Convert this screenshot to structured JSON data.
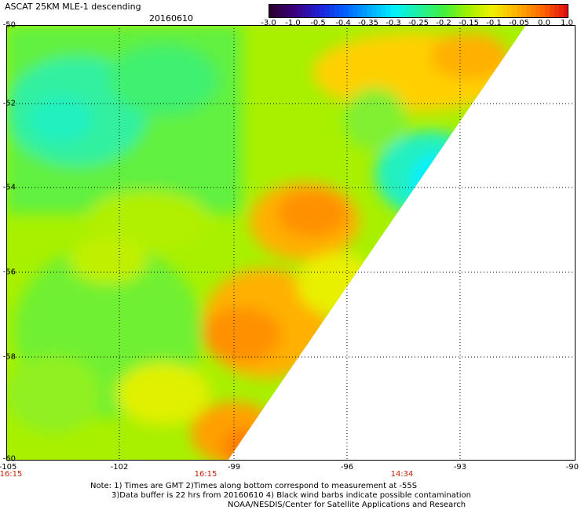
{
  "title": "ASCAT 25KM MLE-1 descending",
  "date": "20160610",
  "colorbar": {
    "ticks": [
      "-3.0",
      "-1.0",
      "-0.5",
      "-0.4",
      "-0.35",
      "-0.3",
      "-0.25",
      "-0.2",
      "-0.15",
      "-0.1",
      "-0.05",
      "0.0",
      "1.0"
    ],
    "colors": [
      "#2a0030",
      "#3c0080",
      "#2020d8",
      "#0060ff",
      "#00a8ff",
      "#00f0ff",
      "#20f0a0",
      "#40f040",
      "#a0f000",
      "#f0f000",
      "#ffb000",
      "#ff6a00",
      "#e01010"
    ]
  },
  "axes": {
    "lat_labels": [
      "-50",
      "-52",
      "-54",
      "-56",
      "-58",
      "-60"
    ],
    "lon_labels": [
      "-105",
      "-102",
      "-99",
      "-96",
      "-93",
      "-90"
    ]
  },
  "times": [
    "16:15",
    "16:15",
    "14:34"
  ],
  "notes": [
    "Note: 1) Times are GMT 2)Times along bottom correspond to measurement at -55S",
    "3)Data buffer is 22 hrs from 20160610 4) Black wind barbs indicate possible contamination",
    "NOAA/NESDIS/Center for Satellite Applications and Research"
  ]
}
